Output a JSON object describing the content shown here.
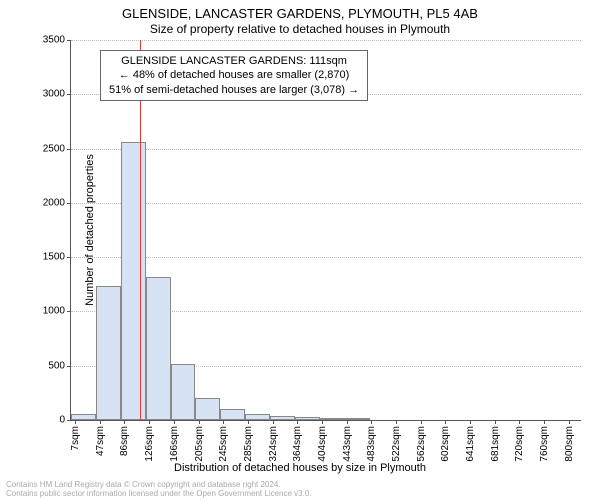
{
  "chart": {
    "type": "bar-histogram",
    "title_line1": "GLENSIDE, LANCASTER GARDENS, PLYMOUTH, PL5 4AB",
    "title_line2": "Size of property relative to detached houses in Plymouth",
    "title1_fontsize": 13,
    "title2_fontsize": 12,
    "info_box": {
      "line1": "GLENSIDE LANCASTER GARDENS: 111sqm",
      "line2": "← 48% of detached houses are smaller (2,870)",
      "line3": "51% of semi-detached houses are larger (3,078) →",
      "border_color": "#666666",
      "fontsize": 11
    },
    "ylabel": "Number of detached properties",
    "xlabel": "Distribution of detached houses by size in Plymouth",
    "label_fontsize": 11,
    "tick_fontsize": 10,
    "background_color": "#ffffff",
    "grid_color": "#bbbbbb",
    "axis_color": "#555555",
    "bar_fill": "#d7e3f4",
    "bar_border": "#888888",
    "marker_color": "#e53935",
    "marker_x": 111,
    "x_min": 0,
    "x_max": 820,
    "y_min": 0,
    "y_max": 3500,
    "ytick_step": 500,
    "xticks": [
      7,
      47,
      86,
      126,
      166,
      205,
      245,
      285,
      324,
      364,
      404,
      443,
      483,
      522,
      562,
      602,
      641,
      681,
      720,
      760,
      800
    ],
    "xtick_suffix": "sqm",
    "bars": [
      {
        "x0": 0,
        "x1": 40,
        "count": 60
      },
      {
        "x0": 40,
        "x1": 80,
        "count": 1230
      },
      {
        "x0": 80,
        "x1": 120,
        "count": 2560
      },
      {
        "x0": 120,
        "x1": 160,
        "count": 1320
      },
      {
        "x0": 160,
        "x1": 200,
        "count": 520
      },
      {
        "x0": 200,
        "x1": 240,
        "count": 200
      },
      {
        "x0": 240,
        "x1": 280,
        "count": 100
      },
      {
        "x0": 280,
        "x1": 320,
        "count": 60
      },
      {
        "x0": 320,
        "x1": 360,
        "count": 40
      },
      {
        "x0": 360,
        "x1": 400,
        "count": 30
      },
      {
        "x0": 400,
        "x1": 440,
        "count": 20
      },
      {
        "x0": 440,
        "x1": 480,
        "count": 15
      }
    ]
  },
  "footer": {
    "line1": "Contains HM Land Registry data © Crown copyright and database right 2024.",
    "line2": "Contains public sector information licensed under the Open Government Licence v3.0.",
    "color": "#aaaaaa",
    "fontsize": 8
  }
}
